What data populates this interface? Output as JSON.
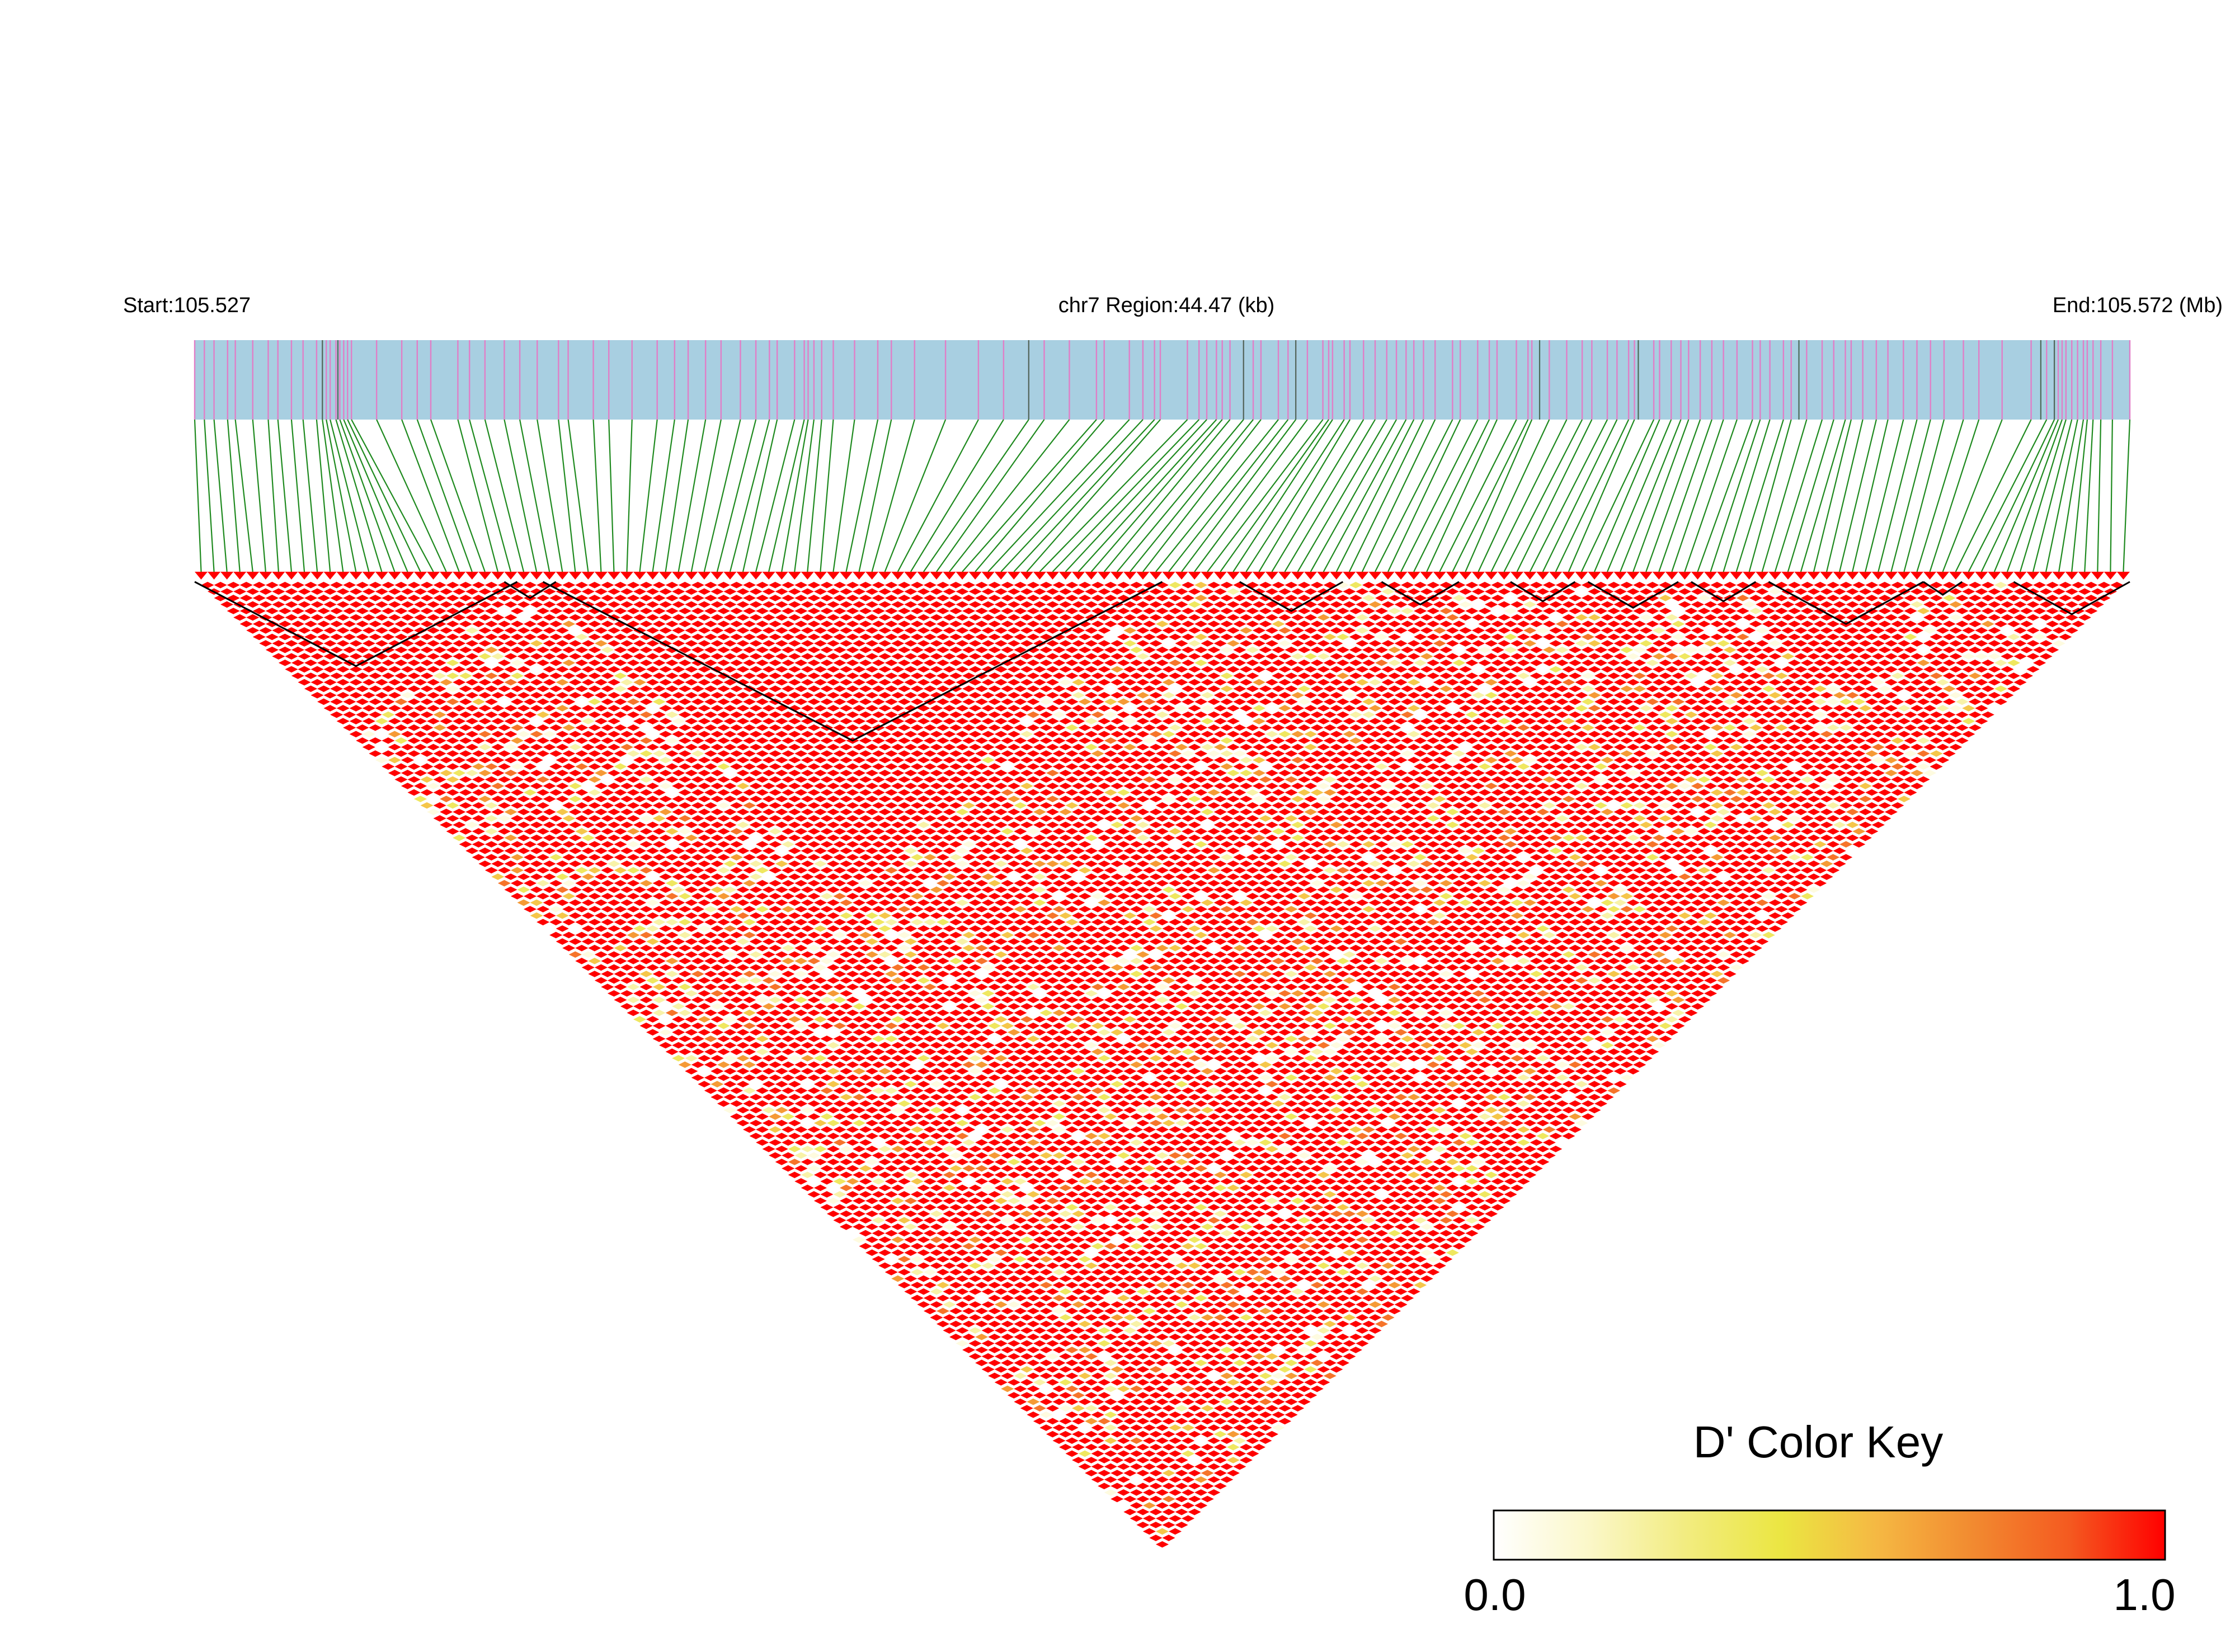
{
  "header": {
    "start_label": "Start:105.527",
    "region_label": "chr7 Region:44.47 (kb)",
    "end_label": "End:105.572 (Mb)"
  },
  "colors": {
    "track_bg": "#a8cfe1",
    "snp_tick": "#e07fc7",
    "snp_tick_dark": "#4d6a5a",
    "connector": "#1f8a1f",
    "high_ld": "#ff0000",
    "block_outline": "#000000"
  },
  "legend": {
    "title": "D' Color Key",
    "min_label": "0.0",
    "max_label": "1.0",
    "gradient": [
      "#ffffff",
      "#fbf7c8",
      "#f2ec80",
      "#ebe642",
      "#f5b843",
      "#f28a30",
      "#f45a20",
      "#ff0000"
    ]
  },
  "chart_data": {
    "type": "heatmap",
    "title": "",
    "metric": "D'",
    "chromosome": "chr7",
    "region_start_mb": 105.527,
    "region_end_mb": 105.572,
    "region_length_kb": 44.47,
    "snp_count": 150,
    "value_range": [
      0.0,
      1.0
    ],
    "dominant_value": 1.0,
    "snp_positions_fraction": [
      0.0,
      0.005,
      0.01,
      0.017,
      0.021,
      0.03,
      0.038,
      0.043,
      0.05,
      0.056,
      0.063,
      0.066,
      0.068,
      0.07,
      0.073,
      0.075,
      0.077,
      0.079,
      0.081,
      0.094,
      0.107,
      0.115,
      0.122,
      0.136,
      0.142,
      0.15,
      0.16,
      0.168,
      0.177,
      0.188,
      0.193,
      0.206,
      0.214,
      0.226,
      0.239,
      0.248,
      0.255,
      0.264,
      0.272,
      0.282,
      0.29,
      0.297,
      0.301,
      0.31,
      0.315,
      0.317,
      0.32,
      0.324,
      0.33,
      0.341,
      0.353,
      0.36,
      0.372,
      0.388,
      0.405,
      0.418,
      0.431,
      0.439,
      0.452,
      0.466,
      0.47,
      0.483,
      0.49,
      0.496,
      0.499,
      0.513,
      0.519,
      0.523,
      0.528,
      0.531,
      0.535,
      0.542,
      0.547,
      0.551,
      0.56,
      0.565,
      0.569,
      0.575,
      0.583,
      0.586,
      0.588,
      0.594,
      0.597,
      0.604,
      0.61,
      0.616,
      0.621,
      0.626,
      0.63,
      0.635,
      0.641,
      0.65,
      0.654,
      0.663,
      0.669,
      0.673,
      0.683,
      0.689,
      0.691,
      0.7,
      0.709,
      0.717,
      0.722,
      0.73,
      0.735,
      0.741,
      0.744,
      0.754,
      0.757,
      0.763,
      0.768,
      0.772,
      0.778,
      0.784,
      0.79,
      0.797,
      0.805,
      0.809,
      0.814,
      0.821,
      0.825,
      0.833,
      0.841,
      0.847,
      0.853,
      0.856,
      0.862,
      0.869,
      0.875,
      0.883,
      0.89,
      0.897,
      0.904,
      0.914,
      0.922,
      0.934,
      0.949,
      0.957,
      0.961,
      0.963,
      0.965,
      0.967,
      0.97,
      0.973,
      0.976,
      0.978,
      0.981,
      0.985,
      0.991,
      1.0
    ],
    "dark_tick_fractions": [
      0.066,
      0.074,
      0.431,
      0.542,
      0.569,
      0.695,
      0.746,
      0.829,
      0.954,
      0.961
    ],
    "low_ld_fraction_estimate": 0.18,
    "haplotype_blocks": [
      {
        "start_index": 0,
        "end_index": 24
      },
      {
        "start_index": 24,
        "end_index": 27
      },
      {
        "start_index": 27,
        "end_index": 74
      },
      {
        "start_index": 81,
        "end_index": 88
      },
      {
        "start_index": 92,
        "end_index": 97
      },
      {
        "start_index": 102,
        "end_index": 106
      },
      {
        "start_index": 108,
        "end_index": 114
      },
      {
        "start_index": 116,
        "end_index": 120
      },
      {
        "start_index": 122,
        "end_index": 133
      },
      {
        "start_index": 134,
        "end_index": 136
      },
      {
        "start_index": 141,
        "end_index": 149
      }
    ]
  }
}
